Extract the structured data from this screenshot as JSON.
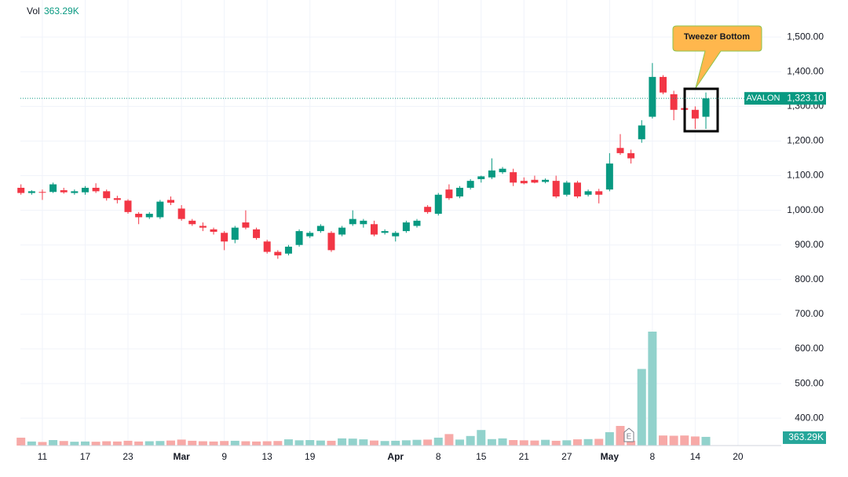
{
  "chart_data": {
    "type": "candlestick",
    "symbol": "AVALON",
    "annotation": "Tweezer Bottom",
    "earnings_label": "E",
    "up_color": "#089981",
    "down_color": "#f23645",
    "volume_up_color": "#92d2cc",
    "volume_down_color": "#f7a9a7",
    "categories": [
      null,
      null,
      "11",
      null,
      null,
      null,
      "17",
      null,
      null,
      null,
      "23",
      null,
      null,
      null,
      null,
      "Mar",
      null,
      null,
      null,
      "9",
      null,
      null,
      null,
      "13",
      null,
      null,
      null,
      "19",
      null,
      null,
      null,
      null,
      null,
      null,
      null,
      "Apr",
      null,
      null,
      null,
      "8",
      null,
      null,
      null,
      "15",
      null,
      null,
      null,
      "21",
      null,
      null,
      null,
      "27",
      null,
      null,
      null,
      "May",
      null,
      null,
      null,
      "8",
      null,
      null,
      null,
      "14",
      null,
      null,
      null,
      "20"
    ],
    "open": [
      1065,
      1050,
      1053,
      1053,
      1058,
      1050,
      1052,
      1065,
      1055,
      1035,
      1028,
      990,
      980,
      980,
      1030,
      1005,
      970,
      955,
      945,
      935,
      915,
      965,
      945,
      910,
      880,
      875,
      900,
      925,
      940,
      935,
      930,
      960,
      960,
      960,
      935,
      925,
      940,
      955,
      1010,
      990,
      1060,
      1040,
      1065,
      1090,
      1095,
      1110,
      1110,
      1085,
      1088,
      1082,
      1085,
      1045,
      1080,
      1045,
      1055,
      1060,
      1180,
      1165,
      1205,
      1270,
      1385,
      1335,
      1295,
      1290,
      1270,
      null,
      null,
      null
    ],
    "high": [
      1075,
      1058,
      1060,
      1080,
      1065,
      1060,
      1070,
      1078,
      1060,
      1042,
      1032,
      995,
      995,
      1030,
      1040,
      1015,
      975,
      965,
      950,
      940,
      955,
      1000,
      950,
      915,
      885,
      900,
      945,
      940,
      960,
      940,
      955,
      1000,
      975,
      970,
      945,
      940,
      970,
      975,
      1015,
      1050,
      1075,
      1070,
      1090,
      1100,
      1150,
      1125,
      1120,
      1095,
      1100,
      1092,
      1100,
      1085,
      1085,
      1060,
      1062,
      1165,
      1220,
      1175,
      1260,
      1425,
      1390,
      1345,
      1300,
      1300,
      1340,
      null,
      null,
      null
    ],
    "low": [
      1045,
      1045,
      1030,
      1050,
      1048,
      1045,
      1045,
      1050,
      1028,
      1020,
      990,
      960,
      975,
      975,
      1015,
      970,
      955,
      940,
      930,
      885,
      905,
      945,
      915,
      875,
      860,
      870,
      895,
      920,
      935,
      880,
      925,
      955,
      950,
      925,
      930,
      910,
      935,
      950,
      990,
      985,
      1030,
      1035,
      1060,
      1080,
      1090,
      1105,
      1070,
      1075,
      1078,
      1078,
      1035,
      1040,
      1035,
      1040,
      1020,
      1055,
      1160,
      1135,
      1195,
      1265,
      1335,
      1260,
      1285,
      1235,
      1235,
      null,
      null,
      null
    ],
    "close": [
      1050,
      1055,
      1052,
      1075,
      1052,
      1055,
      1065,
      1055,
      1035,
      1030,
      995,
      980,
      990,
      1025,
      1022,
      975,
      960,
      950,
      938,
      910,
      950,
      950,
      920,
      880,
      870,
      895,
      940,
      935,
      955,
      885,
      950,
      975,
      970,
      930,
      940,
      935,
      965,
      970,
      995,
      1045,
      1035,
      1065,
      1085,
      1098,
      1115,
      1120,
      1080,
      1078,
      1080,
      1088,
      1040,
      1080,
      1040,
      1055,
      1045,
      1135,
      1165,
      1150,
      1245,
      1385,
      1340,
      1290,
      1290,
      1265,
      1323.1,
      null,
      null,
      null
    ],
    "last_price": {
      "value": 1323.1,
      "label": "1,323.10"
    },
    "volume": {
      "name": "Vol",
      "values": [
        330000,
        170000,
        150000,
        230000,
        190000,
        160000,
        170000,
        160000,
        180000,
        170000,
        200000,
        170000,
        180000,
        190000,
        210000,
        250000,
        200000,
        180000,
        170000,
        190000,
        200000,
        180000,
        170000,
        180000,
        190000,
        260000,
        220000,
        230000,
        210000,
        200000,
        300000,
        290000,
        260000,
        210000,
        190000,
        200000,
        220000,
        240000,
        250000,
        330000,
        480000,
        250000,
        400000,
        650000,
        270000,
        300000,
        230000,
        220000,
        210000,
        240000,
        200000,
        220000,
        260000,
        270000,
        280000,
        560000,
        820000,
        200000,
        3200000,
        4760000,
        420000,
        410000,
        420000,
        380000,
        363290,
        null,
        null,
        null
      ],
      "value_labels": [
        null,
        null,
        null,
        null,
        null,
        null,
        null,
        null,
        null,
        null,
        null,
        null,
        null,
        null,
        null,
        null,
        null,
        null,
        null,
        null,
        null,
        null,
        null,
        null,
        null,
        null,
        null,
        null,
        null,
        null,
        null,
        null,
        null,
        null,
        null,
        null,
        null,
        null,
        null,
        null,
        null,
        null,
        null,
        null,
        null,
        null,
        null,
        null,
        null,
        null,
        null,
        null,
        null,
        null,
        null,
        null,
        null,
        null,
        null,
        null,
        null,
        null,
        null,
        null,
        "363.29K",
        null,
        null,
        null
      ]
    },
    "ylim": [
      321,
      1607
    ],
    "yticks": [
      {
        "value": 400,
        "label": "400.00"
      },
      {
        "value": 500,
        "label": "500.00"
      },
      {
        "value": 600,
        "label": "600.00"
      },
      {
        "value": 700,
        "label": "700.00"
      },
      {
        "value": 800,
        "label": "800.00"
      },
      {
        "value": 900,
        "label": "900.00"
      },
      {
        "value": 1000,
        "label": "1,000.00"
      },
      {
        "value": 1100,
        "label": "1,100.00"
      },
      {
        "value": 1200,
        "label": "1,200.00"
      },
      {
        "value": 1300,
        "label": "1,300.00"
      },
      {
        "value": 1400,
        "label": "1,400.00"
      },
      {
        "value": 1500,
        "label": "1,500.00"
      }
    ],
    "grid": true
  }
}
